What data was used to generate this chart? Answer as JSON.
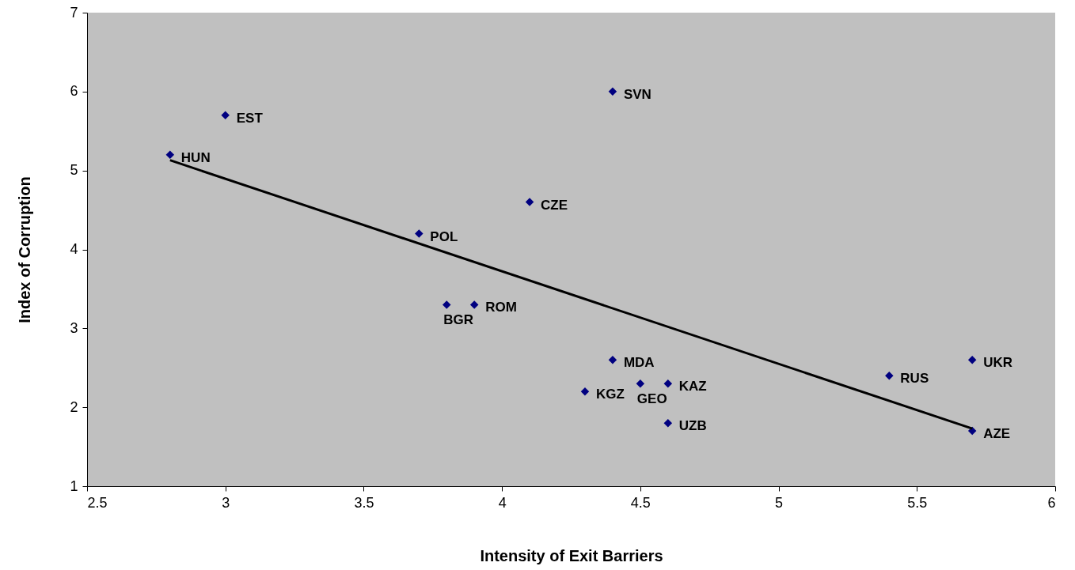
{
  "chart_data": {
    "type": "scatter",
    "xlabel": "Intensity of Exit Barriers",
    "ylabel": "Index of Corruption",
    "xlim": [
      2.5,
      6
    ],
    "xticks": [
      2.5,
      3,
      3.5,
      4,
      4.5,
      5,
      5.5,
      6
    ],
    "ylim": [
      1,
      7
    ],
    "yticks": [
      1,
      2,
      3,
      4,
      5,
      6,
      7
    ],
    "x": [
      2.8,
      3.0,
      4.4,
      4.1,
      3.7,
      3.8,
      3.9,
      4.4,
      4.5,
      4.6,
      4.3,
      4.6,
      5.4,
      5.7,
      5.7
    ],
    "series": [
      {
        "color": "#000080",
        "marker": "diamond",
        "values": [
          5.2,
          5.7,
          6.0,
          4.6,
          4.2,
          3.3,
          3.3,
          2.6,
          2.3,
          2.3,
          2.2,
          1.8,
          2.4,
          2.6,
          1.7
        ]
      },
      {
        "type": "line",
        "color": "#000000",
        "x": [
          2.8,
          5.7
        ],
        "values": [
          5.13,
          1.73
        ]
      }
    ],
    "annotations": [
      {
        "text": "HUN",
        "x": 2.8,
        "y": 5.2
      },
      {
        "text": "EST",
        "x": 3.0,
        "y": 5.7
      },
      {
        "text": "SVN",
        "x": 4.4,
        "y": 6.0
      },
      {
        "text": "CZE",
        "x": 4.1,
        "y": 4.6
      },
      {
        "text": "POL",
        "x": 3.7,
        "y": 4.2
      },
      {
        "text": "BGR",
        "x": 3.8,
        "y": 3.3
      },
      {
        "text": "ROM",
        "x": 3.9,
        "y": 3.3
      },
      {
        "text": "MDA",
        "x": 4.4,
        "y": 2.6
      },
      {
        "text": "GEO",
        "x": 4.5,
        "y": 2.3
      },
      {
        "text": "KAZ",
        "x": 4.6,
        "y": 2.3
      },
      {
        "text": "KGZ",
        "x": 4.3,
        "y": 2.2
      },
      {
        "text": "UZB",
        "x": 4.6,
        "y": 1.8
      },
      {
        "text": "RUS",
        "x": 5.4,
        "y": 2.4
      },
      {
        "text": "UKR",
        "x": 5.7,
        "y": 2.6
      },
      {
        "text": "AZE",
        "x": 5.7,
        "y": 1.7
      }
    ]
  }
}
